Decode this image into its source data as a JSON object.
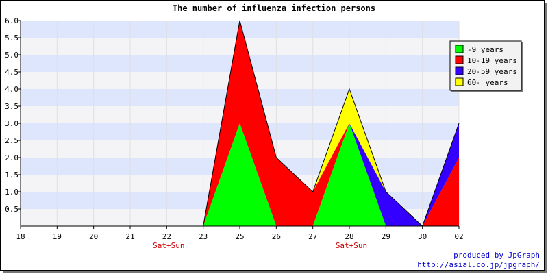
{
  "chart_data": {
    "type": "area",
    "title": "The number of influenza infection persons",
    "xlabel": "",
    "ylabel": "",
    "ylim": [
      0,
      6
    ],
    "yticks": [
      "6.0",
      "5.5",
      "5.0",
      "4.5",
      "4.0",
      "3.5",
      "3.0",
      "2.5",
      "2.0",
      "1.5",
      "1.0",
      "0.5"
    ],
    "categories": [
      "18",
      "19",
      "20",
      "21",
      "22",
      "23",
      "25",
      "26",
      "27",
      "28",
      "29",
      "30",
      "02"
    ],
    "category_notes": {
      "4": "Sat+Sun",
      "9": "Sat+Sun"
    },
    "stacked": true,
    "grid": true,
    "legend_position": "top-right",
    "series": [
      {
        "name": "-9 years",
        "color": "#00ff00",
        "values": [
          0,
          0,
          0,
          0,
          0,
          0,
          3,
          0,
          0,
          3,
          0,
          0,
          0
        ]
      },
      {
        "name": "10-19 years",
        "color": "#ff0000",
        "values": [
          0,
          0,
          0,
          0,
          0,
          0,
          3,
          2,
          1,
          0,
          0,
          0,
          2
        ]
      },
      {
        "name": "20-59 years",
        "color": "#3300ff",
        "values": [
          0,
          0,
          0,
          0,
          0,
          0,
          0,
          0,
          0,
          0,
          1,
          0,
          1
        ]
      },
      {
        "name": "60- years",
        "color": "#ffff00",
        "values": [
          0,
          0,
          0,
          0,
          0,
          0,
          0,
          0,
          0,
          1,
          0,
          0,
          0
        ]
      }
    ]
  },
  "credit": {
    "line1": "produced by JpGraph",
    "line2": "http://asial.co.jp/jpgraph/"
  }
}
